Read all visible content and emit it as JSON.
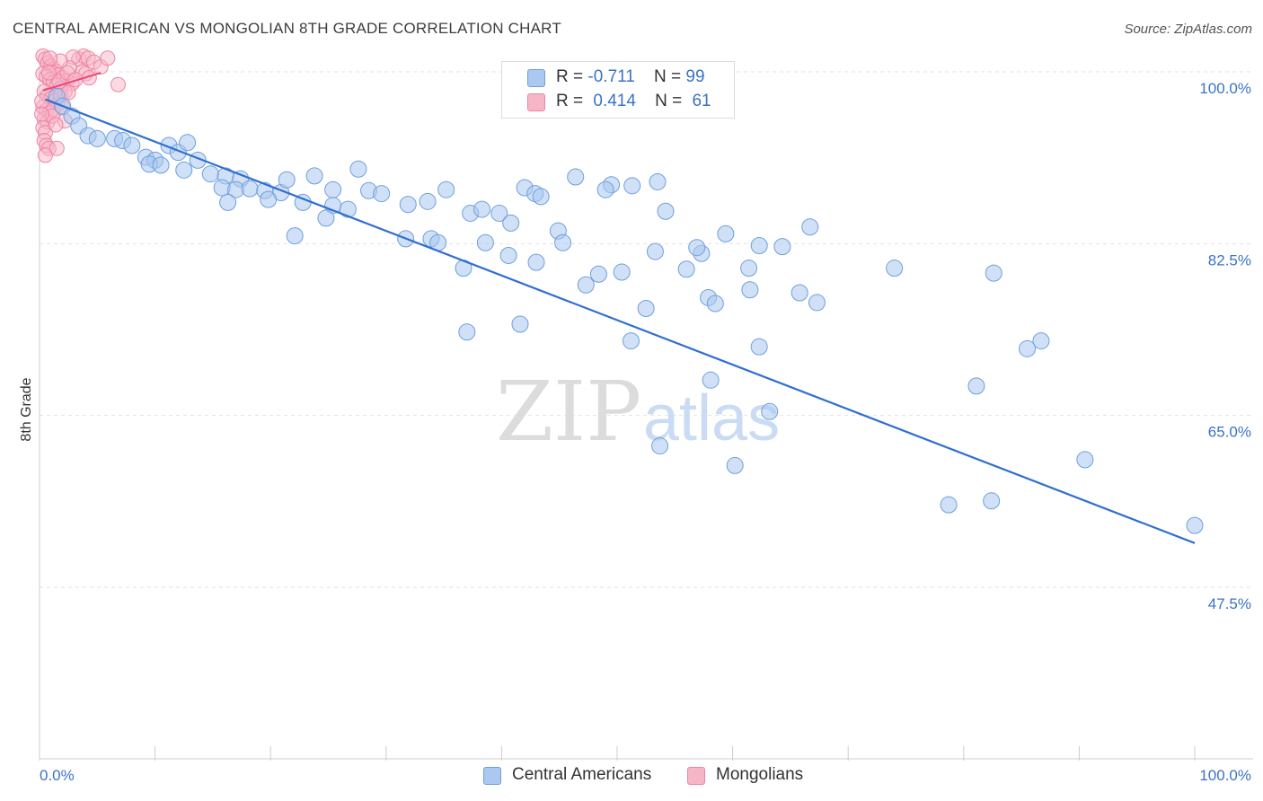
{
  "title": "CENTRAL AMERICAN VS MONGOLIAN 8TH GRADE CORRELATION CHART",
  "source": "Source: ZipAtlas.com",
  "watermark": {
    "zip": "ZIP",
    "atlas": "atlas"
  },
  "legend": {
    "r_label": "R =",
    "n_label": "N =",
    "series": [
      {
        "r": "-0.711",
        "n": "99"
      },
      {
        "r": "0.414",
        "n": "61"
      }
    ]
  },
  "colors": {
    "blue_fill": "#aac8f0",
    "blue_stroke": "#6f9fdc",
    "blue_line": "#2f6fd0",
    "pink_fill": "#f7b6c8",
    "pink_stroke": "#ee84a4",
    "pink_line": "#e8457a",
    "axis_text": "#3a73c8",
    "grid": "#e2e2e2"
  },
  "chart_data": {
    "type": "scatter",
    "title": "CENTRAL AMERICAN VS MONGOLIAN 8TH GRADE CORRELATION CHART",
    "xlabel": "",
    "ylabel": "8th Grade",
    "xlim": [
      0,
      100
    ],
    "ylim": [
      33,
      102
    ],
    "x_tick_labels": [
      "0.0%",
      "100.0%"
    ],
    "y_ticks": [
      47.5,
      65.0,
      82.5,
      100.0
    ],
    "y_tick_labels": [
      "47.5%",
      "65.0%",
      "82.5%",
      "100.0%"
    ],
    "grid": "horizontal dashed",
    "legend_position": "bottom",
    "series": [
      {
        "name": "Central Americans",
        "r": -0.711,
        "n": 99,
        "trend": {
          "x": [
            0.5,
            100
          ],
          "y": [
            97.2,
            52.0
          ]
        },
        "points": [
          [
            1.5,
            97.5
          ],
          [
            2.0,
            96.5
          ],
          [
            2.8,
            95.5
          ],
          [
            3.4,
            94.5
          ],
          [
            4.2,
            93.5
          ],
          [
            5.0,
            93.2
          ],
          [
            6.5,
            93.2
          ],
          [
            7.2,
            93.0
          ],
          [
            8.0,
            92.5
          ],
          [
            9.2,
            91.3
          ],
          [
            10.0,
            91.0
          ],
          [
            11.2,
            92.5
          ],
          [
            12.0,
            91.8
          ],
          [
            12.8,
            92.8
          ],
          [
            13.7,
            91.0
          ],
          [
            9.5,
            90.6
          ],
          [
            10.5,
            90.5
          ],
          [
            12.5,
            90.0
          ],
          [
            14.8,
            89.6
          ],
          [
            16.1,
            89.4
          ],
          [
            17.4,
            89.1
          ],
          [
            15.8,
            88.2
          ],
          [
            17.0,
            88.0
          ],
          [
            18.2,
            88.1
          ],
          [
            19.5,
            87.9
          ],
          [
            20.9,
            87.7
          ],
          [
            16.3,
            86.7
          ],
          [
            21.4,
            89.0
          ],
          [
            22.8,
            86.7
          ],
          [
            23.8,
            89.4
          ],
          [
            25.4,
            86.4
          ],
          [
            26.7,
            86.0
          ],
          [
            28.5,
            87.9
          ],
          [
            29.6,
            87.6
          ],
          [
            24.8,
            85.1
          ],
          [
            27.6,
            90.1
          ],
          [
            19.8,
            87.0
          ],
          [
            22.1,
            83.3
          ],
          [
            25.4,
            88.0
          ],
          [
            31.9,
            86.5
          ],
          [
            33.6,
            86.8
          ],
          [
            35.2,
            88.0
          ],
          [
            37.3,
            85.6
          ],
          [
            38.3,
            86.0
          ],
          [
            39.8,
            85.6
          ],
          [
            40.8,
            84.6
          ],
          [
            42.0,
            88.2
          ],
          [
            42.9,
            87.6
          ],
          [
            43.4,
            87.3
          ],
          [
            44.9,
            83.8
          ],
          [
            46.4,
            89.3
          ],
          [
            49.5,
            88.5
          ],
          [
            49.0,
            88.0
          ],
          [
            51.3,
            88.4
          ],
          [
            53.5,
            88.8
          ],
          [
            54.2,
            85.8
          ],
          [
            57.3,
            81.5
          ],
          [
            56.9,
            82.1
          ],
          [
            59.4,
            83.5
          ],
          [
            61.4,
            80.0
          ],
          [
            62.3,
            82.3
          ],
          [
            64.3,
            82.2
          ],
          [
            66.7,
            84.2
          ],
          [
            31.7,
            83.0
          ],
          [
            33.9,
            83.0
          ],
          [
            34.5,
            82.6
          ],
          [
            36.7,
            80.0
          ],
          [
            38.6,
            82.6
          ],
          [
            40.6,
            81.3
          ],
          [
            43.0,
            80.6
          ],
          [
            45.3,
            82.6
          ],
          [
            48.4,
            79.4
          ],
          [
            50.4,
            79.6
          ],
          [
            53.3,
            81.7
          ],
          [
            56.0,
            79.9
          ],
          [
            57.9,
            77.0
          ],
          [
            58.5,
            76.4
          ],
          [
            61.5,
            77.8
          ],
          [
            65.8,
            77.5
          ],
          [
            67.3,
            76.5
          ],
          [
            74.0,
            80.0
          ],
          [
            82.6,
            79.5
          ],
          [
            47.3,
            78.3
          ],
          [
            52.5,
            75.9
          ],
          [
            41.6,
            74.3
          ],
          [
            37.0,
            73.5
          ],
          [
            51.2,
            72.6
          ],
          [
            62.3,
            72.0
          ],
          [
            81.1,
            68.0
          ],
          [
            86.7,
            72.6
          ],
          [
            58.1,
            68.6
          ],
          [
            63.2,
            65.4
          ],
          [
            53.7,
            61.9
          ],
          [
            60.2,
            59.9
          ],
          [
            85.5,
            71.8
          ],
          [
            90.5,
            60.5
          ],
          [
            78.7,
            55.9
          ],
          [
            82.4,
            56.3
          ],
          [
            100.0,
            53.8
          ]
        ]
      },
      {
        "name": "Mongolians",
        "r": 0.414,
        "n": 61,
        "trend": {
          "x": [
            0.3,
            5.3
          ],
          "y": [
            98.1,
            99.9
          ]
        },
        "points": [
          [
            0.3,
            101.6
          ],
          [
            0.5,
            101.3
          ],
          [
            0.7,
            100.9
          ],
          [
            1.0,
            100.6
          ],
          [
            1.2,
            100.3
          ],
          [
            1.5,
            100.0
          ],
          [
            1.7,
            99.7
          ],
          [
            2.0,
            99.4
          ],
          [
            2.4,
            99.1
          ],
          [
            2.8,
            98.8
          ],
          [
            0.3,
            99.8
          ],
          [
            0.6,
            99.5
          ],
          [
            0.9,
            99.2
          ],
          [
            1.2,
            98.9
          ],
          [
            1.5,
            98.6
          ],
          [
            1.8,
            98.3
          ],
          [
            2.2,
            98.0
          ],
          [
            0.4,
            98.0
          ],
          [
            0.7,
            97.6
          ],
          [
            1.0,
            97.3
          ],
          [
            1.3,
            97.0
          ],
          [
            1.6,
            96.7
          ],
          [
            0.3,
            96.4
          ],
          [
            0.6,
            96.1
          ],
          [
            0.9,
            95.8
          ],
          [
            0.4,
            95.2
          ],
          [
            0.7,
            94.9
          ],
          [
            0.3,
            94.3
          ],
          [
            0.5,
            93.8
          ],
          [
            0.4,
            93.0
          ],
          [
            0.6,
            92.5
          ],
          [
            0.8,
            92.2
          ],
          [
            0.5,
            91.5
          ],
          [
            1.5,
            92.2
          ],
          [
            2.2,
            95.0
          ],
          [
            3.4,
            101.3
          ],
          [
            3.8,
            101.6
          ],
          [
            4.2,
            101.4
          ],
          [
            4.7,
            101.0
          ],
          [
            5.3,
            100.5
          ],
          [
            5.9,
            101.4
          ],
          [
            2.9,
            101.5
          ],
          [
            3.7,
            100.0
          ],
          [
            4.0,
            99.8
          ],
          [
            4.3,
            99.4
          ],
          [
            2.6,
            100.4
          ],
          [
            1.8,
            101.1
          ],
          [
            0.9,
            101.4
          ],
          [
            1.2,
            96.2
          ],
          [
            1.8,
            97.6
          ],
          [
            2.5,
            97.9
          ],
          [
            1.1,
            95.5
          ],
          [
            1.4,
            94.6
          ],
          [
            2.0,
            96.4
          ],
          [
            0.8,
            99.9
          ],
          [
            1.7,
            99.0
          ],
          [
            2.4,
            99.9
          ],
          [
            3.1,
            99.2
          ],
          [
            6.8,
            98.7
          ],
          [
            0.2,
            97.0
          ],
          [
            0.2,
            95.7
          ]
        ]
      }
    ]
  }
}
